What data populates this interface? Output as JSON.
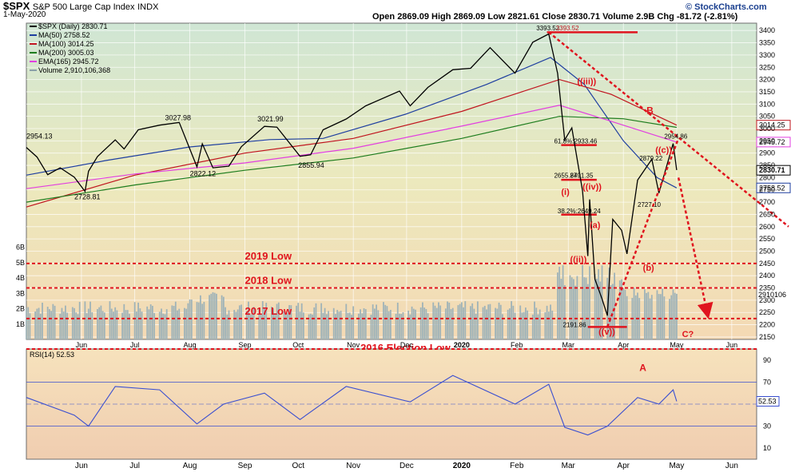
{
  "header": {
    "ticker": "$SPX",
    "index_name": "S&P 500 Large Cap Index",
    "exchange": "INDX",
    "date": "1-May-2020",
    "open_label": "Open",
    "open": "2869.09",
    "high_label": "High",
    "high": "2869.09",
    "low_label": "Low",
    "low": "2821.61",
    "close_label": "Close",
    "close": "2830.71",
    "volume_label": "Volume",
    "volume": "2.9B",
    "chg_label": "Chg",
    "chg": "-81.72 (-2.81%)",
    "brand": "© StockCharts.com"
  },
  "legend": [
    {
      "label": "$SPX (Daily) 2830.71",
      "color": "#000000"
    },
    {
      "label": "MA(50) 2758.52",
      "color": "#1f3fa0"
    },
    {
      "label": "MA(100) 3014.25",
      "color": "#c0141e"
    },
    {
      "label": "MA(200) 3005.03",
      "color": "#1e7d1e"
    },
    {
      "label": "EMA(165) 2945.72",
      "color": "#e23fe0"
    },
    {
      "label": "Volume 2,910,106,368",
      "color": "#8aa0a8"
    }
  ],
  "colors": {
    "price": "#000000",
    "ma50": "#1f3fa0",
    "ma100": "#c0141e",
    "ma200": "#1e7d1e",
    "ema165": "#e23fe0",
    "volume": "#9fb3b8",
    "annotation": "#e0141e",
    "rsi": "#3a4fd0",
    "rsi_fill": "#4a90a8"
  },
  "chart_data": [
    {
      "type": "line",
      "title": "$SPX (Daily) 2830.71",
      "x_range": [
        "2019-05-01",
        "2020-06-15"
      ],
      "ylim": [
        2140,
        3430
      ],
      "y_ticks": [
        2150,
        2200,
        2250,
        2300,
        2350,
        2400,
        2450,
        2500,
        2550,
        2600,
        2650,
        2700,
        2750,
        2800,
        2850,
        2900,
        2950,
        3000,
        3050,
        3100,
        3150,
        3200,
        3250,
        3300,
        3350,
        3400
      ],
      "x_tick_labels": [
        "Jun",
        "Jul",
        "Aug",
        "Sep",
        "Oct",
        "Nov",
        "Dec",
        "2020",
        "Feb",
        "Mar",
        "Apr",
        "May",
        "Jun"
      ],
      "grid": true,
      "legend_position": "top-left",
      "series": [
        {
          "name": "$SPX",
          "points": [
            [
              "2019-05-01",
              2923
            ],
            [
              "2019-05-07",
              2884
            ],
            [
              "2019-05-13",
              2812
            ],
            [
              "2019-05-20",
              2840
            ],
            [
              "2019-05-28",
              2802
            ],
            [
              "2019-06-03",
              2744
            ],
            [
              "2019-06-05",
              2826
            ],
            [
              "2019-06-10",
              2886
            ],
            [
              "2019-06-20",
              2954
            ],
            [
              "2019-06-25",
              2917
            ],
            [
              "2019-07-03",
              2995
            ],
            [
              "2019-07-15",
              3014
            ],
            [
              "2019-07-26",
              3025
            ],
            [
              "2019-08-05",
              2844
            ],
            [
              "2019-08-08",
              2938
            ],
            [
              "2019-08-14",
              2840
            ],
            [
              "2019-08-23",
              2847
            ],
            [
              "2019-08-30",
              2926
            ],
            [
              "2019-09-12",
              3009
            ],
            [
              "2019-09-19",
              3006
            ],
            [
              "2019-10-02",
              2887
            ],
            [
              "2019-10-08",
              2893
            ],
            [
              "2019-10-15",
              2995
            ],
            [
              "2019-10-28",
              3039
            ],
            [
              "2019-11-08",
              3093
            ],
            [
              "2019-11-27",
              3153
            ],
            [
              "2019-12-03",
              3093
            ],
            [
              "2019-12-13",
              3168
            ],
            [
              "2019-12-27",
              3240
            ],
            [
              "2020-01-06",
              3246
            ],
            [
              "2020-01-17",
              3330
            ],
            [
              "2020-01-31",
              3226
            ],
            [
              "2020-02-10",
              3352
            ],
            [
              "2020-02-19",
              3386
            ],
            [
              "2020-02-24",
              3225
            ],
            [
              "2020-02-28",
              2954
            ],
            [
              "2020-03-03",
              3003
            ],
            [
              "2020-03-09",
              2746
            ],
            [
              "2020-03-12",
              2480
            ],
            [
              "2020-03-13",
              2711
            ],
            [
              "2020-03-16",
              2386
            ],
            [
              "2020-03-20",
              2305
            ],
            [
              "2020-03-23",
              2237
            ],
            [
              "2020-03-26",
              2630
            ],
            [
              "2020-03-31",
              2585
            ],
            [
              "2020-04-03",
              2489
            ],
            [
              "2020-04-09",
              2790
            ],
            [
              "2020-04-17",
              2875
            ],
            [
              "2020-04-21",
              2737
            ],
            [
              "2020-04-29",
              2939
            ],
            [
              "2020-05-01",
              2831
            ]
          ]
        },
        {
          "name": "MA(50)",
          "points": [
            [
              "2019-05-01",
              2810
            ],
            [
              "2019-06-15",
              2870
            ],
            [
              "2019-08-01",
              2925
            ],
            [
              "2019-09-15",
              2955
            ],
            [
              "2019-10-15",
              2960
            ],
            [
              "2019-12-01",
              3060
            ],
            [
              "2020-01-15",
              3180
            ],
            [
              "2020-02-20",
              3290
            ],
            [
              "2020-03-10",
              3180
            ],
            [
              "2020-04-01",
              2950
            ],
            [
              "2020-04-20",
              2800
            ],
            [
              "2020-05-01",
              2758
            ]
          ]
        },
        {
          "name": "MA(100)",
          "points": [
            [
              "2019-05-01",
              2680
            ],
            [
              "2019-07-01",
              2810
            ],
            [
              "2019-09-01",
              2900
            ],
            [
              "2019-11-01",
              2960
            ],
            [
              "2020-01-01",
              3070
            ],
            [
              "2020-02-25",
              3200
            ],
            [
              "2020-03-25",
              3140
            ],
            [
              "2020-05-01",
              3014
            ]
          ]
        },
        {
          "name": "MA(200)",
          "points": [
            [
              "2019-05-01",
              2700
            ],
            [
              "2019-07-01",
              2770
            ],
            [
              "2019-09-01",
              2830
            ],
            [
              "2019-11-01",
              2880
            ],
            [
              "2020-01-01",
              2960
            ],
            [
              "2020-02-25",
              3050
            ],
            [
              "2020-04-01",
              3040
            ],
            [
              "2020-05-01",
              3005
            ]
          ]
        },
        {
          "name": "EMA(165)",
          "points": [
            [
              "2019-05-01",
              2755
            ],
            [
              "2019-07-01",
              2815
            ],
            [
              "2019-09-01",
              2860
            ],
            [
              "2019-11-01",
              2920
            ],
            [
              "2020-01-01",
              3010
            ],
            [
              "2020-02-25",
              3095
            ],
            [
              "2020-03-25",
              3030
            ],
            [
              "2020-05-01",
              2945
            ]
          ]
        }
      ],
      "annotations": [
        "3393.52",
        "3393.52",
        "((iii))",
        "61.8%:2933.46",
        "2954.86",
        "((c))",
        "2879.22",
        "2655.84",
        "2791.35",
        "(i)",
        "((iv))",
        "2727.10",
        "38.2%:2649.24",
        "(a)",
        "((ii))",
        "(b)",
        "2191.86",
        "((v))",
        "C?",
        "B",
        "2954.13",
        "3027.98",
        "3021.99",
        "2728.81",
        "2822.12",
        "2855.94",
        "2019 Low",
        "2018 Low",
        "2017 Low",
        "2016 Election Low"
      ],
      "right_labels": [
        "3014.25",
        "2945.72",
        "2830.71",
        "2758.52",
        "2910106"
      ]
    },
    {
      "type": "bar",
      "title": "Volume 2,910,106,368",
      "y_tick_labels": [
        "1B",
        "2B",
        "3B",
        "4B",
        "5B",
        "6B"
      ],
      "last_value": 2910106368
    },
    {
      "type": "line",
      "title": "RSI(14) 52.53",
      "ylim": [
        0,
        100
      ],
      "y_ticks": [
        10,
        30,
        50,
        70,
        90
      ],
      "last_value": 52.53,
      "series": [
        {
          "name": "RSI(14)",
          "points": [
            [
              "2019-05-01",
              56
            ],
            [
              "2019-05-28",
              40
            ],
            [
              "2019-06-05",
              30
            ],
            [
              "2019-06-20",
              66
            ],
            [
              "2019-07-15",
              63
            ],
            [
              "2019-08-05",
              32
            ],
            [
              "2019-08-20",
              50
            ],
            [
              "2019-09-12",
              60
            ],
            [
              "2019-10-02",
              36
            ],
            [
              "2019-10-28",
              66
            ],
            [
              "2019-12-03",
              52
            ],
            [
              "2019-12-27",
              76
            ],
            [
              "2020-01-31",
              50
            ],
            [
              "2020-02-19",
              68
            ],
            [
              "2020-02-28",
              29
            ],
            [
              "2020-03-12",
              22
            ],
            [
              "2020-03-23",
              30
            ],
            [
              "2020-04-09",
              56
            ],
            [
              "2020-04-21",
              50
            ],
            [
              "2020-04-29",
              63
            ],
            [
              "2020-05-01",
              52.53
            ]
          ]
        }
      ]
    }
  ]
}
